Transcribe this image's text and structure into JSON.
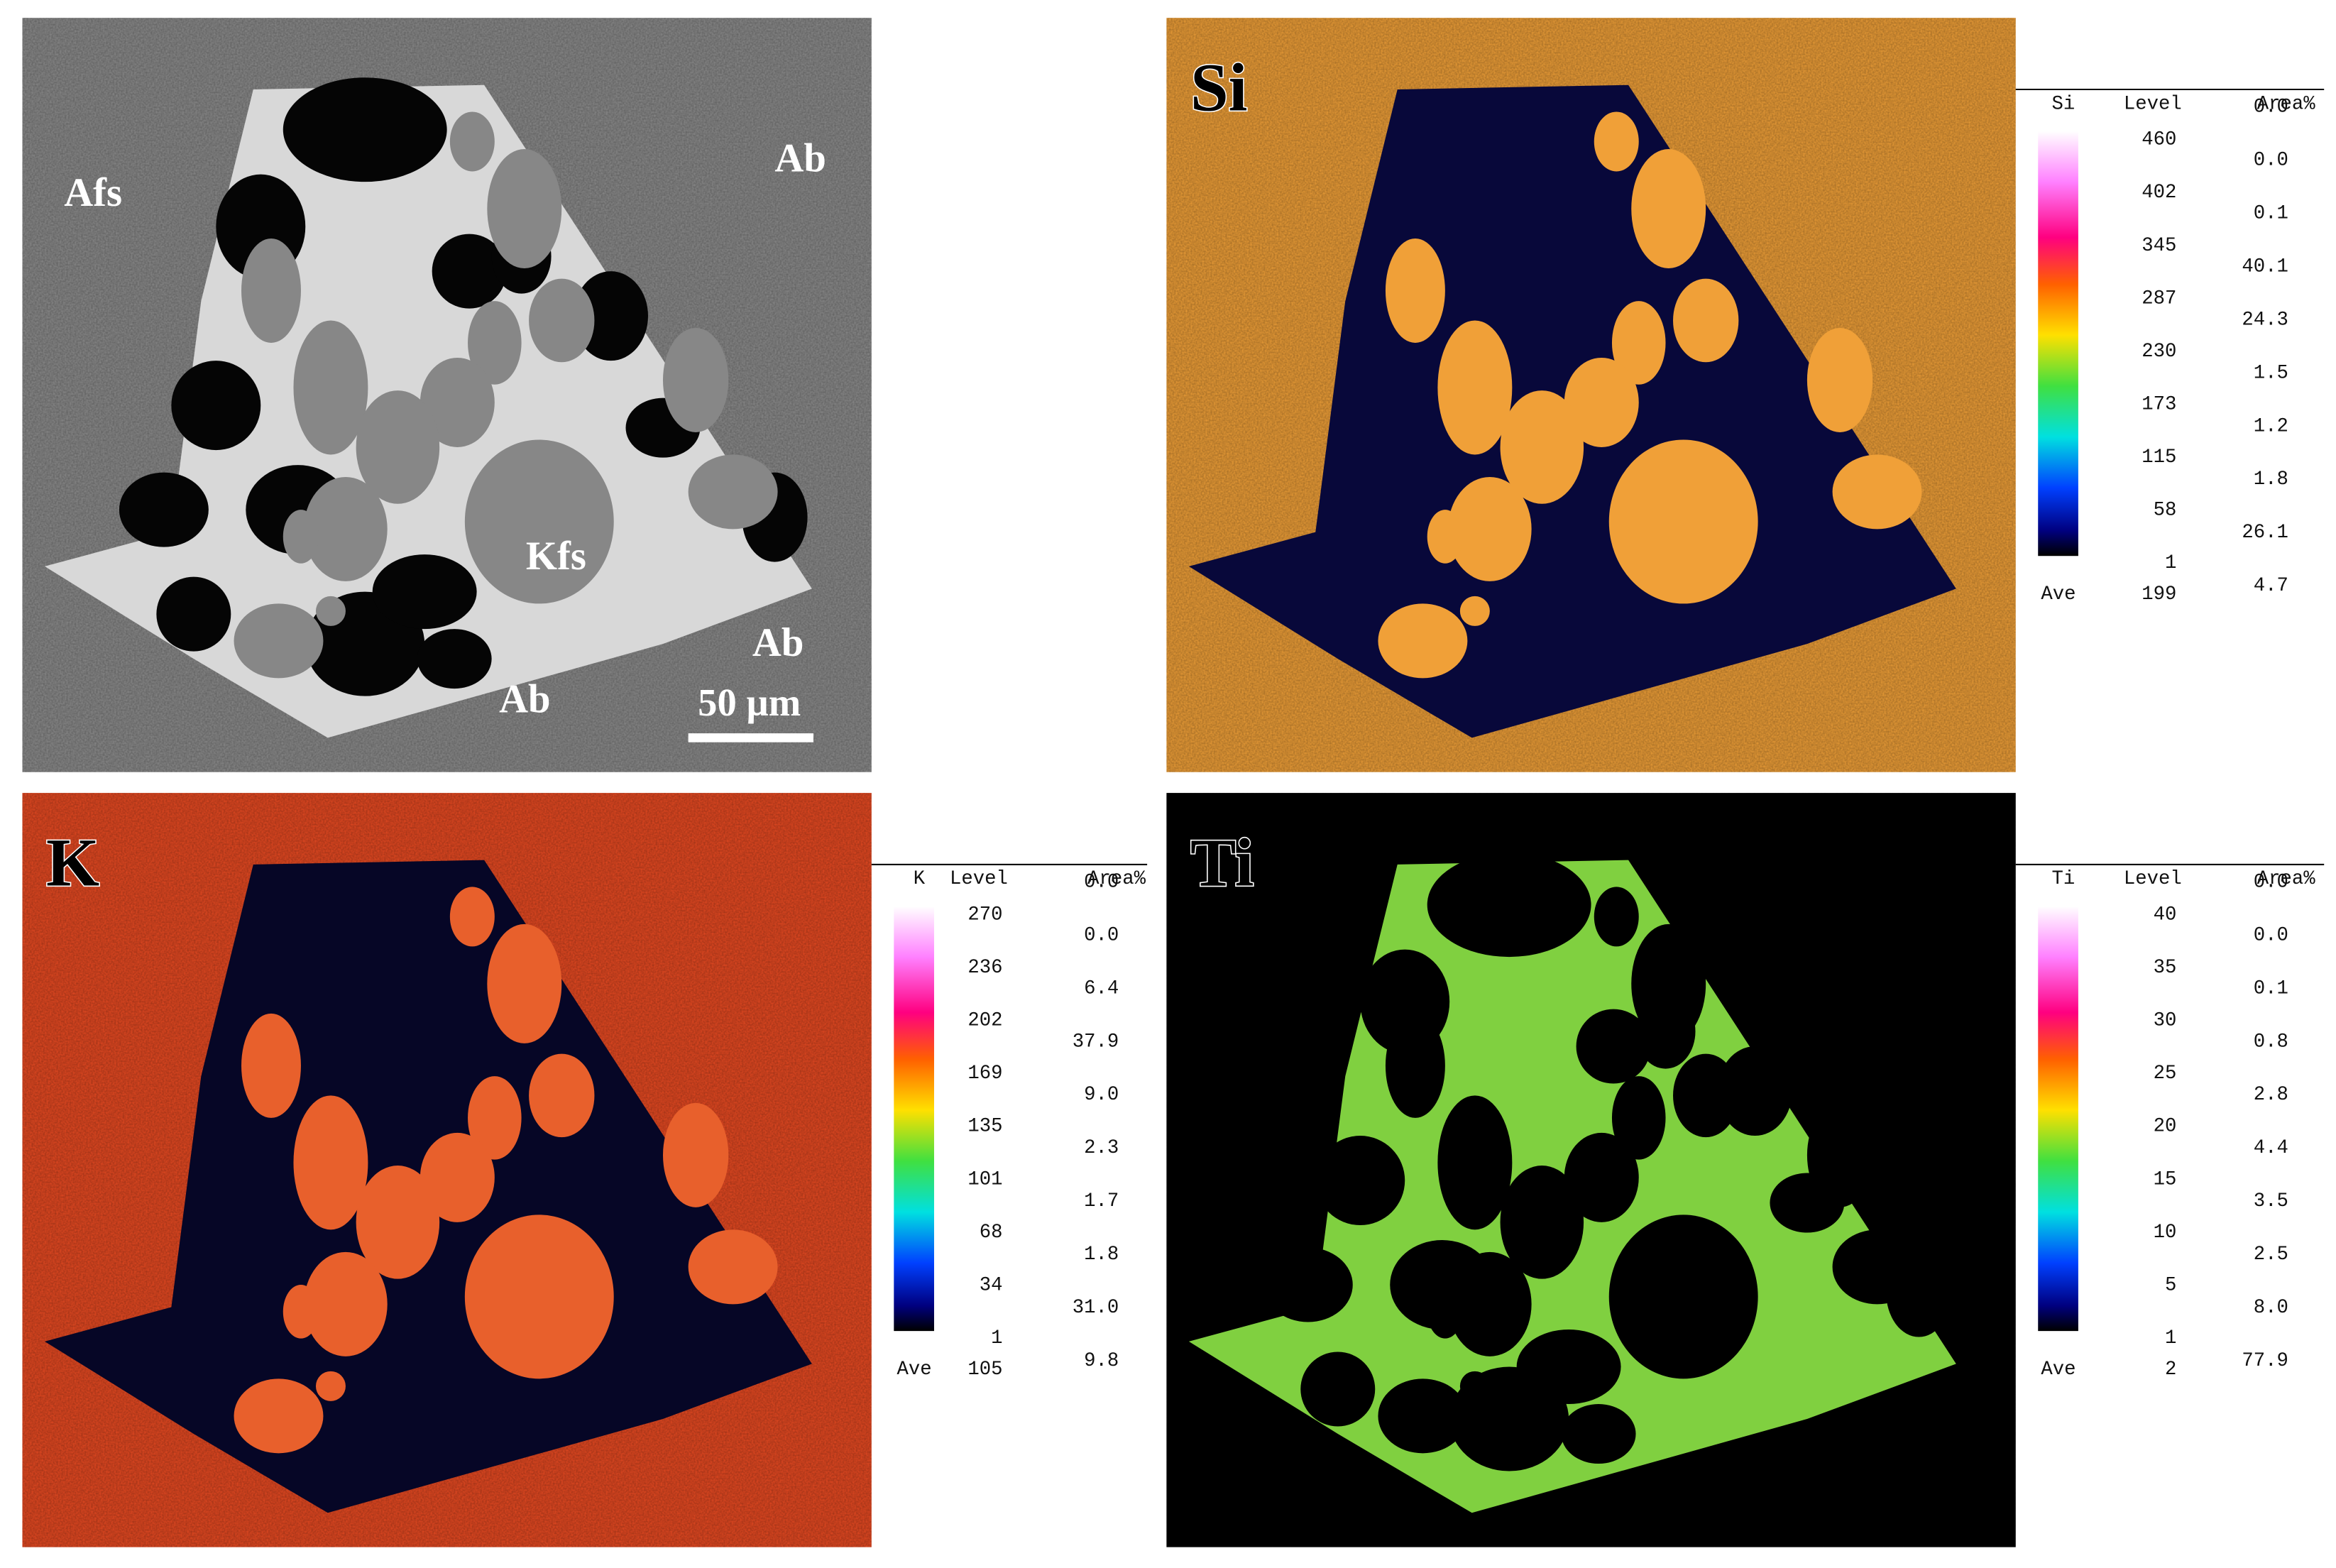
{
  "bse": {
    "labels": [
      "Afs",
      "Ab",
      "Kfs",
      "Ab",
      "Ab"
    ],
    "scale_bar": "50 µm"
  },
  "maps": [
    {
      "element": "Si",
      "level_header": "Level",
      "area_header": "Area%",
      "levels": [
        "460",
        "402",
        "345",
        "287",
        "230",
        "173",
        "115",
        "58",
        "1"
      ],
      "areas": [
        "0.0",
        "0.0",
        "0.1",
        "40.1",
        "24.3",
        "1.5",
        "1.2",
        "1.8",
        "26.1",
        "4.7"
      ],
      "ave_label": "Ave",
      "ave": "199"
    },
    {
      "element": "K",
      "level_header": "Level",
      "area_header": "Area%",
      "levels": [
        "270",
        "236",
        "202",
        "169",
        "135",
        "101",
        "68",
        "34",
        "1"
      ],
      "areas": [
        "0.0",
        "0.0",
        "6.4",
        "37.9",
        "9.0",
        "2.3",
        "1.7",
        "1.8",
        "31.0",
        "9.8"
      ],
      "ave_label": "Ave",
      "ave": "105"
    },
    {
      "element": "Ti",
      "level_header": "Level",
      "area_header": "Area%",
      "levels": [
        "40",
        "35",
        "30",
        "25",
        "20",
        "15",
        "10",
        "5",
        "1"
      ],
      "areas": [
        "0.0",
        "0.0",
        "0.1",
        "0.8",
        "2.8",
        "4.4",
        "3.5",
        "2.5",
        "8.0",
        "77.9"
      ],
      "ave_label": "Ave",
      "ave": "2"
    }
  ]
}
